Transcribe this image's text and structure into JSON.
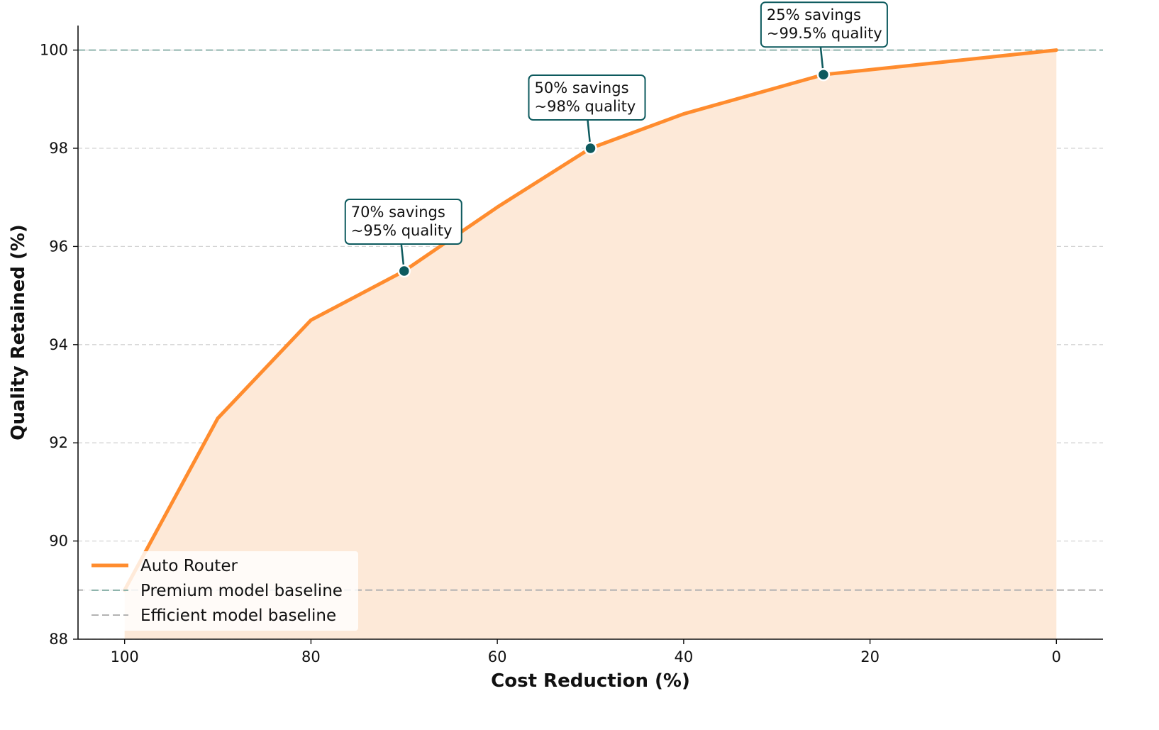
{
  "chart_data": {
    "type": "area",
    "xlabel": "Cost Reduction (%)",
    "ylabel": "Quality Retained (%)",
    "xlim": [
      105,
      -5
    ],
    "ylim": [
      88,
      100.5
    ],
    "x_ticks": [
      "100",
      "80",
      "60",
      "40",
      "20",
      "0"
    ],
    "y_ticks": [
      "88",
      "90",
      "92",
      "94",
      "96",
      "98",
      "100"
    ],
    "x_reversed": true,
    "grid": "horizontal dashed",
    "legend_position": "lower-left",
    "series": [
      {
        "name": "Auto Router",
        "color": "#ff8c2e",
        "fill_color": "#fde9d8",
        "x": [
          100,
          90,
          80,
          70,
          60,
          50,
          40,
          25,
          0
        ],
        "y": [
          89.0,
          92.5,
          94.5,
          95.5,
          96.8,
          98.0,
          98.7,
          99.5,
          100.0
        ]
      }
    ],
    "reference_lines": [
      {
        "name": "Premium model baseline",
        "y": 100,
        "color": "#8fb5ad"
      },
      {
        "name": "Efficient model baseline",
        "y": 89,
        "color": "#b3b3b3"
      }
    ],
    "annotations": [
      {
        "x": 70,
        "y": 95.5,
        "lines": [
          "70% savings",
          "~95% quality"
        ],
        "color": "#0d5a5e"
      },
      {
        "x": 50,
        "y": 98.0,
        "lines": [
          "50% savings",
          "~98% quality"
        ],
        "color": "#0d5a5e"
      },
      {
        "x": 25,
        "y": 99.5,
        "lines": [
          "25% savings",
          "~99.5% quality"
        ],
        "color": "#0d5a5e"
      }
    ]
  }
}
